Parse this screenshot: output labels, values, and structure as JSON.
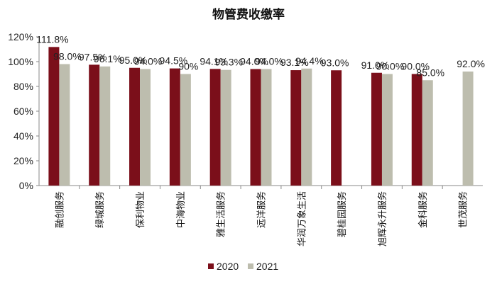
{
  "chart_data": {
    "type": "bar",
    "title": "物管费收缴率",
    "categories": [
      "融创服务",
      "绿城服务",
      "保利物业",
      "中海物业",
      "雅生活服务",
      "远洋服务",
      "华润万象生活",
      "碧桂园服务",
      "旭辉永升服务",
      "金科服务",
      "世茂服务"
    ],
    "series": [
      {
        "name": "2020",
        "color": "#7B0F1A",
        "values": [
          111.8,
          97.5,
          95.0,
          94.5,
          94.1,
          94.0,
          93.1,
          93.0,
          91.0,
          90.0,
          null
        ],
        "labels": [
          "111.8%",
          "97.5%",
          "95.0%",
          "94.5%",
          "94.1%",
          "94.0%",
          "93.1%",
          "93.0%",
          "91.0%",
          "90.0%",
          ""
        ]
      },
      {
        "name": "2021",
        "color": "#BDBDAE",
        "values": [
          98.0,
          96.1,
          94.0,
          90.0,
          93.3,
          94.0,
          94.4,
          null,
          90.0,
          85.0,
          92.0
        ],
        "labels": [
          "98.0%",
          "96.1%",
          "94.0%",
          "90%",
          "93.3%",
          "94.0%",
          "94.4%",
          "",
          "90.0%",
          "85.0%",
          "92.0%"
        ]
      }
    ],
    "ylim": [
      0,
      120
    ],
    "yticks": [
      "0%",
      "20%",
      "40%",
      "60%",
      "80%",
      "100%",
      "120%"
    ],
    "grid": false,
    "legend": "bottom"
  }
}
